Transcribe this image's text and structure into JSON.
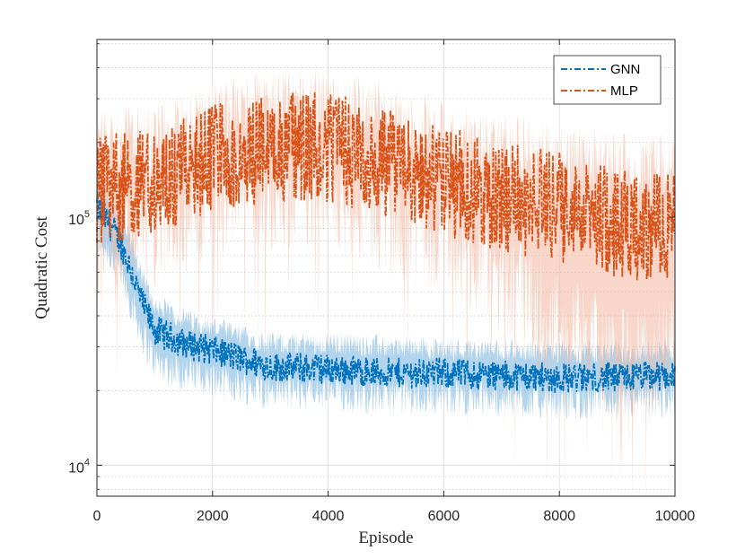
{
  "chart_data": {
    "type": "line",
    "xlabel": "Episode",
    "ylabel": "Quadratic Cost",
    "yscale": "log",
    "xlim": [
      0,
      10000
    ],
    "ylim": [
      7500,
      520000
    ],
    "xticks": [
      0,
      2000,
      4000,
      6000,
      8000,
      10000
    ],
    "xtick_labels": [
      "0",
      "2000",
      "4000",
      "6000",
      "8000",
      "10000"
    ],
    "yticks": [
      10000,
      100000
    ],
    "ytick_labels": [
      {
        "base": "10",
        "exp": "4"
      },
      {
        "base": "10",
        "exp": "5"
      }
    ],
    "grid": true,
    "legend_position": "top-right",
    "series": [
      {
        "name": "GNN",
        "color": "#0072BD",
        "band_color": "#7fb8e0",
        "line_style": "dash-dot",
        "x": [
          0,
          200,
          400,
          600,
          800,
          1000,
          1500,
          2000,
          3000,
          4000,
          5000,
          6000,
          7000,
          8000,
          9000,
          10000
        ],
        "y": [
          110000,
          95000,
          80000,
          60000,
          44000,
          35000,
          31000,
          29000,
          25000,
          24500,
          23500,
          23500,
          23000,
          22500,
          22500,
          23000
        ],
        "lower": [
          85000,
          72000,
          60000,
          45000,
          33000,
          26000,
          23500,
          22000,
          20000,
          19500,
          19000,
          19000,
          18500,
          18000,
          18000,
          18500
        ],
        "upper": [
          140000,
          120000,
          100000,
          78000,
          56000,
          44000,
          39000,
          36000,
          31000,
          31000,
          30000,
          29500,
          29000,
          28500,
          28500,
          29000
        ]
      },
      {
        "name": "MLP",
        "color": "#D95319",
        "band_color": "#f2b79e",
        "line_style": "dash-dot",
        "x": [
          0,
          500,
          1000,
          1500,
          2000,
          2500,
          3000,
          3500,
          4000,
          4500,
          5000,
          5500,
          6000,
          6500,
          7000,
          7500,
          8000,
          8500,
          9000,
          9500,
          10000
        ],
        "y": [
          130000,
          135000,
          140000,
          150000,
          170000,
          180000,
          190000,
          195000,
          190000,
          180000,
          165000,
          150000,
          140000,
          130000,
          120000,
          115000,
          110000,
          100000,
          95000,
          90000,
          95000
        ],
        "lower": [
          80000,
          85000,
          90000,
          95000,
          110000,
          120000,
          125000,
          130000,
          125000,
          115000,
          100000,
          90000,
          80000,
          70000,
          55000,
          45000,
          35000,
          30000,
          25000,
          25000,
          30000
        ],
        "upper": [
          190000,
          200000,
          210000,
          225000,
          250000,
          270000,
          285000,
          290000,
          285000,
          275000,
          255000,
          230000,
          215000,
          200000,
          190000,
          185000,
          175000,
          165000,
          160000,
          150000,
          160000
        ]
      }
    ]
  }
}
